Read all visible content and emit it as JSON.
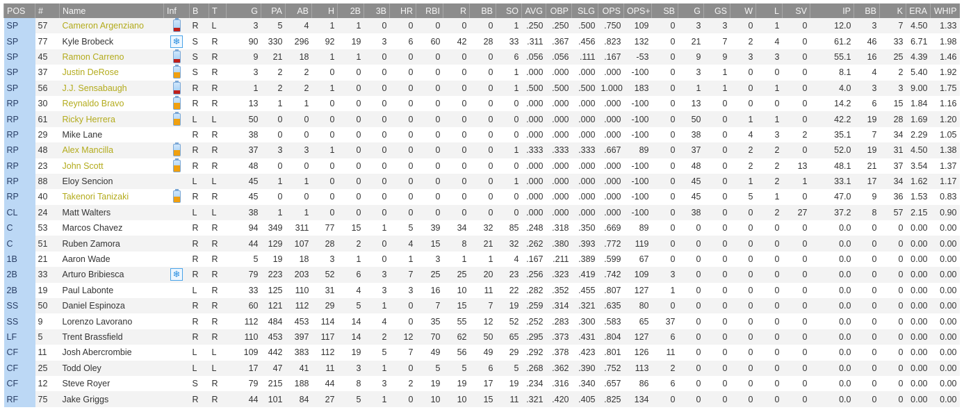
{
  "colors": {
    "highlight_name": "#b3ab1c",
    "battery_low": "#c0201a",
    "battery_mid": "#f0a010",
    "pos_column": "#bcd8f5",
    "header": "#8c8c8c"
  },
  "columns": [
    "POS",
    "#",
    "Name",
    "Inf",
    "B",
    "T",
    "G",
    "PA",
    "AB",
    "H",
    "2B",
    "3B",
    "HR",
    "RBI",
    "R",
    "BB",
    "SO",
    "AVG",
    "OBP",
    "SLG",
    "OPS",
    "OPS+",
    "SB",
    "G",
    "GS",
    "W",
    "L",
    "SV",
    "IP",
    "BB",
    "K",
    "ERA",
    "WHIP"
  ],
  "rows": [
    {
      "cells": [
        "SP",
        "57",
        "Cameron Argenziano",
        "",
        "R",
        "L",
        "3",
        "5",
        "4",
        "1",
        "1",
        "0",
        "0",
        "0",
        "0",
        "0",
        "1",
        ".250",
        ".250",
        ".500",
        ".750",
        "109",
        "0",
        "3",
        "3",
        "0",
        "1",
        "0",
        "12.0",
        "3",
        "7",
        "4.50",
        "1.33"
      ],
      "inf": "battery-low",
      "highlight": true
    },
    {
      "cells": [
        "SP",
        "77",
        "Kyle Brobeck",
        "",
        "S",
        "R",
        "90",
        "330",
        "296",
        "92",
        "19",
        "3",
        "6",
        "60",
        "42",
        "28",
        "33",
        ".311",
        ".367",
        ".456",
        ".823",
        "132",
        "0",
        "21",
        "7",
        "2",
        "4",
        "0",
        "61.2",
        "46",
        "33",
        "6.71",
        "1.98"
      ],
      "inf": "snowflake",
      "highlight": false
    },
    {
      "cells": [
        "SP",
        "45",
        "Ramon Carreno",
        "",
        "S",
        "R",
        "9",
        "21",
        "18",
        "1",
        "1",
        "0",
        "0",
        "0",
        "0",
        "0",
        "6",
        ".056",
        ".056",
        ".111",
        ".167",
        "-53",
        "0",
        "9",
        "9",
        "3",
        "3",
        "0",
        "55.1",
        "16",
        "25",
        "4.39",
        "1.46"
      ],
      "inf": "battery-low",
      "highlight": true
    },
    {
      "cells": [
        "SP",
        "37",
        "Justin DeRose",
        "",
        "S",
        "R",
        "3",
        "2",
        "2",
        "0",
        "0",
        "0",
        "0",
        "0",
        "0",
        "0",
        "1",
        ".000",
        ".000",
        ".000",
        ".000",
        "-100",
        "0",
        "3",
        "1",
        "0",
        "0",
        "0",
        "8.1",
        "4",
        "2",
        "5.40",
        "1.92"
      ],
      "inf": "battery-mid",
      "highlight": true
    },
    {
      "cells": [
        "SP",
        "56",
        "J.J. Sensabaugh",
        "",
        "R",
        "R",
        "1",
        "2",
        "2",
        "1",
        "0",
        "0",
        "0",
        "0",
        "0",
        "0",
        "1",
        ".500",
        ".500",
        ".500",
        "1.000",
        "183",
        "0",
        "1",
        "1",
        "0",
        "1",
        "0",
        "4.0",
        "3",
        "3",
        "9.00",
        "1.75"
      ],
      "inf": "battery-low",
      "highlight": true
    },
    {
      "cells": [
        "RP",
        "30",
        "Reynaldo Bravo",
        "",
        "R",
        "R",
        "13",
        "1",
        "1",
        "0",
        "0",
        "0",
        "0",
        "0",
        "0",
        "0",
        "0",
        ".000",
        ".000",
        ".000",
        ".000",
        "-100",
        "0",
        "13",
        "0",
        "0",
        "0",
        "0",
        "14.2",
        "6",
        "15",
        "1.84",
        "1.16"
      ],
      "inf": "battery-mid",
      "highlight": true
    },
    {
      "cells": [
        "RP",
        "61",
        "Ricky Herrera",
        "",
        "L",
        "L",
        "50",
        "0",
        "0",
        "0",
        "0",
        "0",
        "0",
        "0",
        "0",
        "0",
        "0",
        ".000",
        ".000",
        ".000",
        ".000",
        "-100",
        "0",
        "50",
        "0",
        "1",
        "1",
        "0",
        "42.2",
        "19",
        "28",
        "1.69",
        "1.20"
      ],
      "inf": "battery-mid",
      "highlight": true
    },
    {
      "cells": [
        "RP",
        "29",
        "Mike Lane",
        "",
        "R",
        "R",
        "38",
        "0",
        "0",
        "0",
        "0",
        "0",
        "0",
        "0",
        "0",
        "0",
        "0",
        ".000",
        ".000",
        ".000",
        ".000",
        "-100",
        "0",
        "38",
        "0",
        "4",
        "3",
        "2",
        "35.1",
        "7",
        "34",
        "2.29",
        "1.05"
      ],
      "inf": "",
      "highlight": false
    },
    {
      "cells": [
        "RP",
        "48",
        "Alex Mancilla",
        "",
        "R",
        "R",
        "37",
        "3",
        "3",
        "1",
        "0",
        "0",
        "0",
        "0",
        "0",
        "0",
        "1",
        ".333",
        ".333",
        ".333",
        ".667",
        "89",
        "0",
        "37",
        "0",
        "2",
        "2",
        "0",
        "52.0",
        "19",
        "31",
        "4.50",
        "1.38"
      ],
      "inf": "battery-mid",
      "highlight": true
    },
    {
      "cells": [
        "RP",
        "23",
        "John Scott",
        "",
        "R",
        "R",
        "48",
        "0",
        "0",
        "0",
        "0",
        "0",
        "0",
        "0",
        "0",
        "0",
        "0",
        ".000",
        ".000",
        ".000",
        ".000",
        "-100",
        "0",
        "48",
        "0",
        "2",
        "2",
        "13",
        "48.1",
        "21",
        "37",
        "3.54",
        "1.37"
      ],
      "inf": "battery-mid",
      "highlight": true
    },
    {
      "cells": [
        "RP",
        "88",
        "Eloy Sencion",
        "",
        "L",
        "L",
        "45",
        "1",
        "1",
        "0",
        "0",
        "0",
        "0",
        "0",
        "0",
        "0",
        "1",
        ".000",
        ".000",
        ".000",
        ".000",
        "-100",
        "0",
        "45",
        "0",
        "1",
        "2",
        "1",
        "33.1",
        "17",
        "34",
        "1.62",
        "1.17"
      ],
      "inf": "",
      "highlight": false
    },
    {
      "cells": [
        "RP",
        "40",
        "Takenori Tanizaki",
        "",
        "R",
        "R",
        "45",
        "0",
        "0",
        "0",
        "0",
        "0",
        "0",
        "0",
        "0",
        "0",
        "0",
        ".000",
        ".000",
        ".000",
        ".000",
        "-100",
        "0",
        "45",
        "0",
        "5",
        "1",
        "0",
        "47.0",
        "9",
        "36",
        "1.53",
        "0.83"
      ],
      "inf": "battery-mid",
      "highlight": true
    },
    {
      "cells": [
        "CL",
        "24",
        "Matt Walters",
        "",
        "L",
        "L",
        "38",
        "1",
        "1",
        "0",
        "0",
        "0",
        "0",
        "0",
        "0",
        "0",
        "0",
        ".000",
        ".000",
        ".000",
        ".000",
        "-100",
        "0",
        "38",
        "0",
        "0",
        "2",
        "27",
        "37.2",
        "8",
        "57",
        "2.15",
        "0.90"
      ],
      "inf": "",
      "highlight": false
    },
    {
      "cells": [
        "C",
        "53",
        "Marcos Chavez",
        "",
        "R",
        "R",
        "94",
        "349",
        "311",
        "77",
        "15",
        "1",
        "5",
        "39",
        "34",
        "32",
        "85",
        ".248",
        ".318",
        ".350",
        ".669",
        "89",
        "0",
        "0",
        "0",
        "0",
        "0",
        "0",
        "0.0",
        "0",
        "0",
        "0.00",
        "0.00"
      ],
      "inf": "",
      "highlight": false
    },
    {
      "cells": [
        "C",
        "51",
        "Ruben Zamora",
        "",
        "R",
        "R",
        "44",
        "129",
        "107",
        "28",
        "2",
        "0",
        "4",
        "15",
        "8",
        "21",
        "32",
        ".262",
        ".380",
        ".393",
        ".772",
        "119",
        "0",
        "0",
        "0",
        "0",
        "0",
        "0",
        "0.0",
        "0",
        "0",
        "0.00",
        "0.00"
      ],
      "inf": "",
      "highlight": false
    },
    {
      "cells": [
        "1B",
        "21",
        "Aaron Wade",
        "",
        "R",
        "R",
        "5",
        "19",
        "18",
        "3",
        "1",
        "0",
        "1",
        "3",
        "1",
        "1",
        "4",
        ".167",
        ".211",
        ".389",
        ".599",
        "67",
        "0",
        "0",
        "0",
        "0",
        "0",
        "0",
        "0.0",
        "0",
        "0",
        "0.00",
        "0.00"
      ],
      "inf": "",
      "highlight": false
    },
    {
      "cells": [
        "2B",
        "33",
        "Arturo Bribiesca",
        "",
        "R",
        "R",
        "79",
        "223",
        "203",
        "52",
        "6",
        "3",
        "7",
        "25",
        "25",
        "20",
        "23",
        ".256",
        ".323",
        ".419",
        ".742",
        "109",
        "3",
        "0",
        "0",
        "0",
        "0",
        "0",
        "0.0",
        "0",
        "0",
        "0.00",
        "0.00"
      ],
      "inf": "snowflake",
      "highlight": false
    },
    {
      "cells": [
        "2B",
        "19",
        "Paul Labonte",
        "",
        "L",
        "R",
        "33",
        "125",
        "110",
        "31",
        "4",
        "3",
        "3",
        "16",
        "10",
        "11",
        "22",
        ".282",
        ".352",
        ".455",
        ".807",
        "127",
        "1",
        "0",
        "0",
        "0",
        "0",
        "0",
        "0.0",
        "0",
        "0",
        "0.00",
        "0.00"
      ],
      "inf": "",
      "highlight": false
    },
    {
      "cells": [
        "SS",
        "50",
        "Daniel Espinoza",
        "",
        "R",
        "R",
        "60",
        "121",
        "112",
        "29",
        "5",
        "1",
        "0",
        "7",
        "15",
        "7",
        "19",
        ".259",
        ".314",
        ".321",
        ".635",
        "80",
        "0",
        "0",
        "0",
        "0",
        "0",
        "0",
        "0.0",
        "0",
        "0",
        "0.00",
        "0.00"
      ],
      "inf": "",
      "highlight": false
    },
    {
      "cells": [
        "SS",
        "9",
        "Lorenzo Lavorano",
        "",
        "R",
        "R",
        "112",
        "484",
        "453",
        "114",
        "14",
        "4",
        "0",
        "35",
        "55",
        "12",
        "52",
        ".252",
        ".283",
        ".300",
        ".583",
        "65",
        "37",
        "0",
        "0",
        "0",
        "0",
        "0",
        "0.0",
        "0",
        "0",
        "0.00",
        "0.00"
      ],
      "inf": "",
      "highlight": false
    },
    {
      "cells": [
        "LF",
        "5",
        "Trent Brassfield",
        "",
        "R",
        "R",
        "110",
        "453",
        "397",
        "117",
        "14",
        "2",
        "12",
        "70",
        "62",
        "50",
        "65",
        ".295",
        ".373",
        ".431",
        ".804",
        "127",
        "6",
        "0",
        "0",
        "0",
        "0",
        "0",
        "0.0",
        "0",
        "0",
        "0.00",
        "0.00"
      ],
      "inf": "",
      "highlight": false
    },
    {
      "cells": [
        "CF",
        "11",
        "Josh Abercrombie",
        "",
        "L",
        "L",
        "109",
        "442",
        "383",
        "112",
        "19",
        "5",
        "7",
        "49",
        "56",
        "49",
        "29",
        ".292",
        ".378",
        ".423",
        ".801",
        "126",
        "11",
        "0",
        "0",
        "0",
        "0",
        "0",
        "0.0",
        "0",
        "0",
        "0.00",
        "0.00"
      ],
      "inf": "",
      "highlight": false
    },
    {
      "cells": [
        "CF",
        "25",
        "Todd Oley",
        "",
        "L",
        "L",
        "17",
        "47",
        "41",
        "11",
        "3",
        "1",
        "0",
        "5",
        "5",
        "6",
        "5",
        ".268",
        ".362",
        ".390",
        ".752",
        "113",
        "2",
        "0",
        "0",
        "0",
        "0",
        "0",
        "0.0",
        "0",
        "0",
        "0.00",
        "0.00"
      ],
      "inf": "",
      "highlight": false
    },
    {
      "cells": [
        "CF",
        "12",
        "Steve Royer",
        "",
        "S",
        "R",
        "79",
        "215",
        "188",
        "44",
        "8",
        "3",
        "2",
        "19",
        "19",
        "17",
        "19",
        ".234",
        ".316",
        ".340",
        ".657",
        "86",
        "6",
        "0",
        "0",
        "0",
        "0",
        "0",
        "0.0",
        "0",
        "0",
        "0.00",
        "0.00"
      ],
      "inf": "",
      "highlight": false
    },
    {
      "cells": [
        "RF",
        "75",
        "Jake Griggs",
        "",
        "R",
        "R",
        "44",
        "101",
        "84",
        "27",
        "5",
        "1",
        "0",
        "10",
        "10",
        "15",
        "11",
        ".321",
        ".420",
        ".405",
        ".825",
        "134",
        "0",
        "0",
        "0",
        "0",
        "0",
        "0",
        "0.0",
        "0",
        "0",
        "0.00",
        "0.00"
      ],
      "inf": "",
      "highlight": false
    }
  ]
}
